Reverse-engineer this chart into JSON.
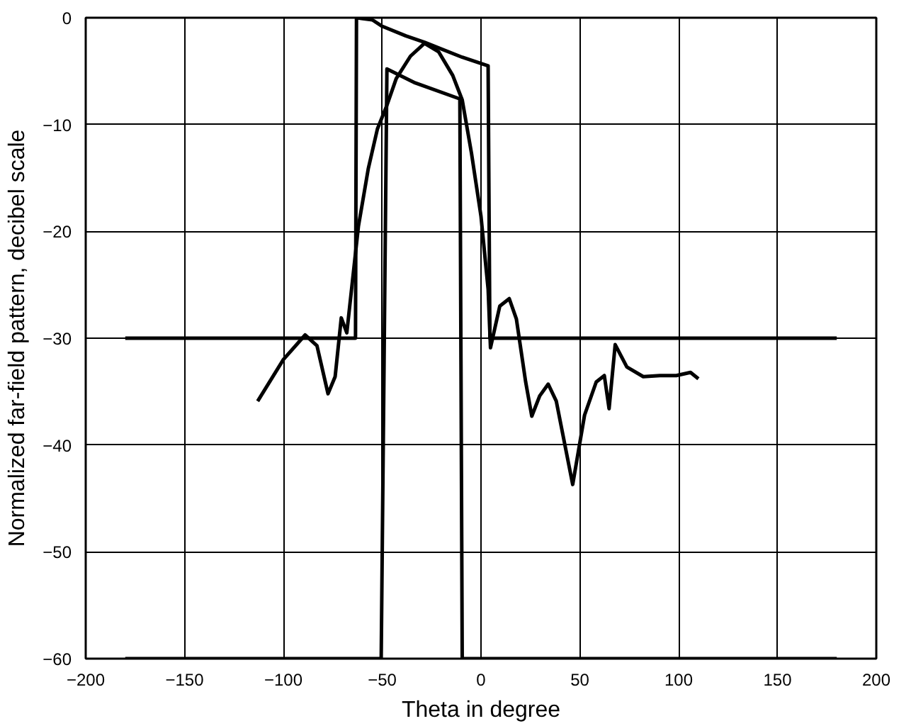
{
  "chart_data": {
    "type": "line",
    "xlabel": "Theta in degree",
    "ylabel": "Normalized far-field pattern, decibel scale",
    "xlim": [
      -200,
      200
    ],
    "xticks": [
      -200,
      -150,
      -100,
      -50,
      0,
      50,
      100,
      150,
      200
    ],
    "ylim": [
      -60,
      0
    ],
    "yticks": [
      -60,
      -50,
      -40,
      -30,
      -20,
      -10,
      0
    ],
    "grid": true,
    "line_style": "solid",
    "marker": "none",
    "series": [
      {
        "color": "#000000",
        "x": [
          -180,
          -63.5,
          -63,
          -55,
          -50,
          -38,
          -28.6,
          -9.5,
          3.6,
          4.5,
          180
        ],
        "values": [
          -30,
          -30,
          0,
          -0.2,
          -0.8,
          -1.7,
          -2.3,
          -3.7,
          -4.5,
          -30,
          -30
        ]
      },
      {
        "color": "#000000",
        "x": [
          -180,
          -50.5,
          -47.6,
          -33.3,
          -10.7,
          -9.5,
          180
        ],
        "values": [
          -60,
          -60,
          -4.8,
          -6.1,
          -7.6,
          -60,
          -60
        ]
      },
      {
        "color": "#000000",
        "x": [
          -113,
          -100,
          -89,
          -83,
          -77.4,
          -73.8,
          -70.7,
          -67.9,
          -62,
          -57,
          -52.4,
          -47.6,
          -42.9,
          -35.7,
          -28.6,
          -21.4,
          -14.3,
          -9.5,
          -4.8,
          0,
          3.6,
          4.8,
          9.5,
          14.3,
          17.9,
          22.6,
          25.7,
          29.7,
          34,
          38.1,
          46.4,
          52.4,
          58.3,
          62.4,
          64.8,
          67.9,
          73.8,
          82.1,
          90.5,
          98.8,
          106,
          110
        ],
        "values": [
          -35.9,
          -32,
          -29.7,
          -30.7,
          -35.2,
          -33.6,
          -28.1,
          -29.5,
          -19.5,
          -14.1,
          -10.4,
          -8.2,
          -5.7,
          -3.6,
          -2.4,
          -3.2,
          -5.4,
          -7.7,
          -12.7,
          -18.6,
          -25.4,
          -30.9,
          -27,
          -26.3,
          -28.2,
          -34.1,
          -37.3,
          -35.4,
          -34.3,
          -35.9,
          -43.7,
          -37.2,
          -34.1,
          -33.5,
          -36.6,
          -30.6,
          -32.7,
          -33.6,
          -33.5,
          -33.5,
          -33.2,
          -33.8
        ]
      }
    ]
  }
}
